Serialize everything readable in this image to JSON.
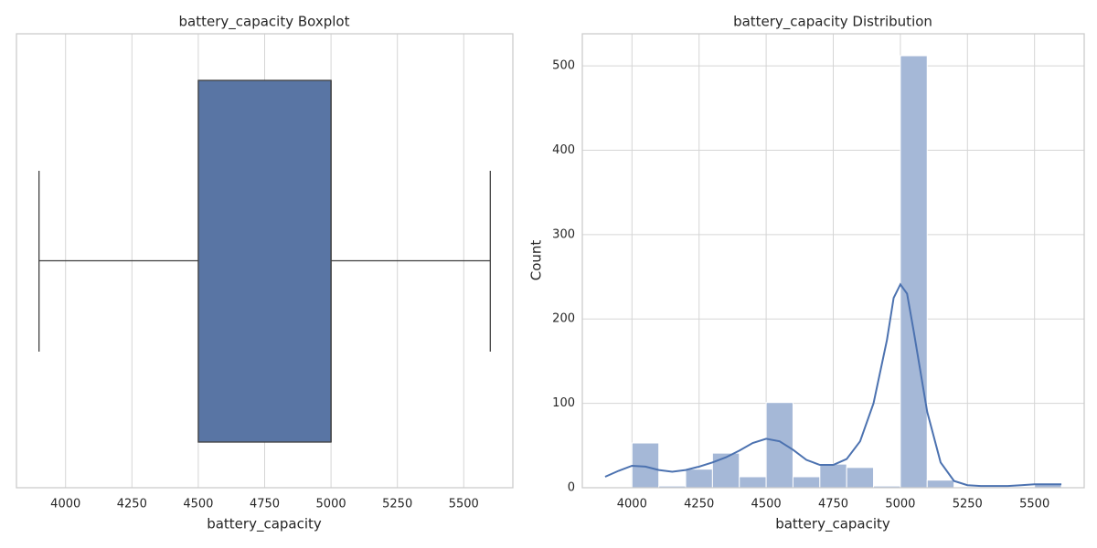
{
  "chart_data": [
    {
      "type": "box",
      "title": "battery_capacity Boxplot",
      "x_label": "battery_capacity",
      "whisker_low": 3900,
      "q1": 4500,
      "median": 5000,
      "q3": 5000,
      "whisker_high": 5600,
      "color": "#5975a4",
      "edge_color": "#3f3f3f",
      "xlim": [
        3815,
        5685
      ],
      "xticks": [
        4000,
        4250,
        4500,
        4750,
        5000,
        5250,
        5500
      ],
      "grid": true
    },
    {
      "type": "histogram",
      "title": "battery_capacity Distribution",
      "x_label": "battery_capacity",
      "y_label": "Count",
      "bins": [
        3900,
        4000,
        4100,
        4200,
        4300,
        4400,
        4500,
        4600,
        4700,
        4800,
        4900,
        5000,
        5100,
        5200,
        5300,
        5400,
        5500,
        5600
      ],
      "counts": [
        1,
        53,
        2,
        22,
        41,
        13,
        101,
        13,
        28,
        24,
        2,
        512,
        9,
        1,
        0,
        0,
        4
      ],
      "color": "#a5b8d7",
      "kde": {
        "color": "#4c72b0",
        "x": [
          3900,
          3950,
          4000,
          4050,
          4100,
          4150,
          4200,
          4250,
          4300,
          4350,
          4400,
          4450,
          4500,
          4550,
          4600,
          4650,
          4700,
          4750,
          4800,
          4850,
          4900,
          4950,
          4975,
          5000,
          5025,
          5050,
          5100,
          5150,
          5200,
          5250,
          5300,
          5350,
          5400,
          5450,
          5500,
          5550,
          5600
        ],
        "y": [
          13,
          20,
          26,
          25,
          21,
          19,
          21,
          25,
          30,
          36,
          44,
          53,
          58,
          55,
          45,
          33,
          27,
          27,
          34,
          55,
          100,
          175,
          225,
          241,
          230,
          185,
          90,
          30,
          8,
          3,
          2,
          2,
          2,
          3,
          4,
          4,
          4
        ]
      },
      "xlim": [
        3815,
        5685
      ],
      "xticks": [
        4000,
        4250,
        4500,
        4750,
        5000,
        5250,
        5500
      ],
      "ylim": [
        0,
        538
      ],
      "yticks": [
        0,
        100,
        200,
        300,
        400,
        500
      ],
      "grid": true
    }
  ]
}
